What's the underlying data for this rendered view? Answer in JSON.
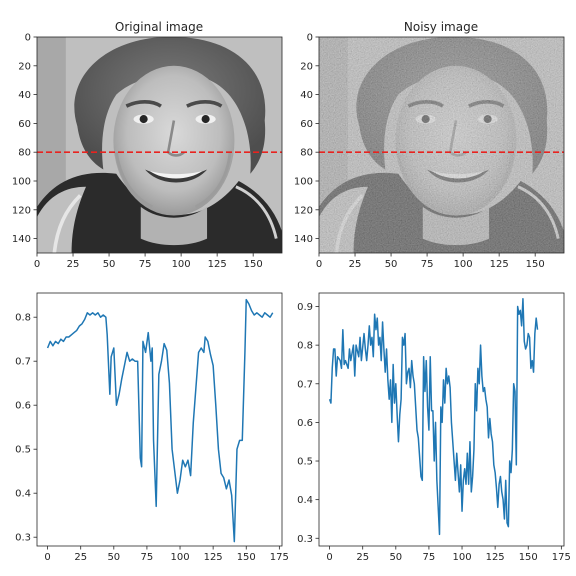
{
  "chart_data": [
    {
      "type": "heatmap",
      "title": "Original image",
      "subject": "grayscale portrait photograph",
      "xlim": [
        0,
        170
      ],
      "ylim": [
        150,
        0
      ],
      "xticks": [
        "0",
        "25",
        "50",
        "75",
        "100",
        "125",
        "150"
      ],
      "yticks": [
        "0",
        "20",
        "40",
        "60",
        "80",
        "100",
        "120",
        "140"
      ],
      "hline": {
        "y": 80,
        "color": "#e8231f",
        "style": "dashed"
      },
      "cmap": "gray"
    },
    {
      "type": "heatmap",
      "title": "Noisy image",
      "subject": "grayscale portrait photograph with added noise",
      "xlim": [
        0,
        170
      ],
      "ylim": [
        150,
        0
      ],
      "xticks": [
        "0",
        "25",
        "50",
        "75",
        "100",
        "125",
        "150"
      ],
      "yticks": [
        "0",
        "20",
        "40",
        "60",
        "80",
        "100",
        "120",
        "140"
      ],
      "hline": {
        "y": 80,
        "color": "#e8231f",
        "style": "dashed"
      },
      "cmap": "gray"
    },
    {
      "type": "line",
      "title": "",
      "xlim": [
        -8,
        177
      ],
      "ylim": [
        0.28,
        0.855
      ],
      "xticks": [
        "0",
        "25",
        "50",
        "75",
        "100",
        "125",
        "150",
        "175"
      ],
      "yticks": [
        "0.3",
        "0.4",
        "0.5",
        "0.6",
        "0.7",
        "0.8"
      ],
      "color": "#1f77b4",
      "points": [
        [
          0,
          0.73
        ],
        [
          2,
          0.745
        ],
        [
          4,
          0.735
        ],
        [
          6,
          0.745
        ],
        [
          8,
          0.74
        ],
        [
          10,
          0.75
        ],
        [
          12,
          0.745
        ],
        [
          14,
          0.755
        ],
        [
          16,
          0.755
        ],
        [
          18,
          0.76
        ],
        [
          20,
          0.765
        ],
        [
          22,
          0.77
        ],
        [
          24,
          0.78
        ],
        [
          26,
          0.785
        ],
        [
          28,
          0.795
        ],
        [
          30,
          0.81
        ],
        [
          32,
          0.805
        ],
        [
          34,
          0.81
        ],
        [
          36,
          0.805
        ],
        [
          38,
          0.81
        ],
        [
          40,
          0.8
        ],
        [
          42,
          0.805
        ],
        [
          44,
          0.8
        ],
        [
          45,
          0.76
        ],
        [
          47,
          0.625
        ],
        [
          48,
          0.71
        ],
        [
          50,
          0.73
        ],
        [
          52,
          0.6
        ],
        [
          54,
          0.625
        ],
        [
          56,
          0.66
        ],
        [
          58,
          0.69
        ],
        [
          60,
          0.72
        ],
        [
          62,
          0.7
        ],
        [
          64,
          0.705
        ],
        [
          66,
          0.7
        ],
        [
          68,
          0.7
        ],
        [
          70,
          0.48
        ],
        [
          71,
          0.46
        ],
        [
          72,
          0.745
        ],
        [
          74,
          0.72
        ],
        [
          76,
          0.765
        ],
        [
          78,
          0.7
        ],
        [
          79,
          0.73
        ],
        [
          80,
          0.52
        ],
        [
          82,
          0.37
        ],
        [
          84,
          0.67
        ],
        [
          86,
          0.7
        ],
        [
          88,
          0.74
        ],
        [
          90,
          0.725
        ],
        [
          92,
          0.65
        ],
        [
          94,
          0.5
        ],
        [
          96,
          0.45
        ],
        [
          98,
          0.4
        ],
        [
          100,
          0.43
        ],
        [
          102,
          0.475
        ],
        [
          104,
          0.46
        ],
        [
          106,
          0.475
        ],
        [
          108,
          0.44
        ],
        [
          110,
          0.56
        ],
        [
          112,
          0.64
        ],
        [
          114,
          0.72
        ],
        [
          116,
          0.73
        ],
        [
          118,
          0.72
        ],
        [
          119,
          0.755
        ],
        [
          121,
          0.745
        ],
        [
          123,
          0.715
        ],
        [
          125,
          0.69
        ],
        [
          127,
          0.6
        ],
        [
          129,
          0.5
        ],
        [
          131,
          0.445
        ],
        [
          133,
          0.435
        ],
        [
          135,
          0.41
        ],
        [
          137,
          0.43
        ],
        [
          139,
          0.395
        ],
        [
          141,
          0.29
        ],
        [
          143,
          0.5
        ],
        [
          145,
          0.52
        ],
        [
          147,
          0.52
        ],
        [
          149,
          0.72
        ],
        [
          150,
          0.84
        ],
        [
          152,
          0.83
        ],
        [
          154,
          0.815
        ],
        [
          156,
          0.805
        ],
        [
          158,
          0.81
        ],
        [
          160,
          0.805
        ],
        [
          162,
          0.8
        ],
        [
          164,
          0.81
        ],
        [
          166,
          0.805
        ],
        [
          168,
          0.8
        ],
        [
          170,
          0.81
        ]
      ]
    },
    {
      "type": "line",
      "title": "",
      "xlim": [
        -8,
        177
      ],
      "ylim": [
        0.28,
        0.935
      ],
      "xticks": [
        "0",
        "25",
        "50",
        "75",
        "100",
        "125",
        "150",
        "175"
      ],
      "yticks": [
        "0.3",
        "0.4",
        "0.5",
        "0.6",
        "0.7",
        "0.8",
        "0.9"
      ],
      "color": "#1f77b4",
      "points": [
        [
          0,
          0.66
        ],
        [
          1,
          0.65
        ],
        [
          2,
          0.74
        ],
        [
          3,
          0.79
        ],
        [
          4,
          0.79
        ],
        [
          5,
          0.72
        ],
        [
          6,
          0.77
        ],
        [
          8,
          0.76
        ],
        [
          9,
          0.74
        ],
        [
          10,
          0.84
        ],
        [
          11,
          0.75
        ],
        [
          12,
          0.76
        ],
        [
          14,
          0.74
        ],
        [
          15,
          0.79
        ],
        [
          16,
          0.76
        ],
        [
          18,
          0.8
        ],
        [
          19,
          0.72
        ],
        [
          20,
          0.8
        ],
        [
          22,
          0.77
        ],
        [
          23,
          0.82
        ],
        [
          24,
          0.76
        ],
        [
          26,
          0.83
        ],
        [
          27,
          0.79
        ],
        [
          28,
          0.76
        ],
        [
          29,
          0.8
        ],
        [
          30,
          0.85
        ],
        [
          31,
          0.8
        ],
        [
          32,
          0.82
        ],
        [
          33,
          0.77
        ],
        [
          34,
          0.88
        ],
        [
          35,
          0.84
        ],
        [
          36,
          0.87
        ],
        [
          37,
          0.8
        ],
        [
          38,
          0.82
        ],
        [
          39,
          0.76
        ],
        [
          40,
          0.86
        ],
        [
          41,
          0.79
        ],
        [
          42,
          0.73
        ],
        [
          43,
          0.79
        ],
        [
          44,
          0.71
        ],
        [
          45,
          0.66
        ],
        [
          46,
          0.71
        ],
        [
          47,
          0.6
        ],
        [
          48,
          0.75
        ],
        [
          49,
          0.65
        ],
        [
          50,
          0.7
        ],
        [
          51,
          0.62
        ],
        [
          52,
          0.55
        ],
        [
          53,
          0.62
        ],
        [
          54,
          0.66
        ],
        [
          55,
          0.82
        ],
        [
          56,
          0.8
        ],
        [
          57,
          0.83
        ],
        [
          58,
          0.7
        ],
        [
          59,
          0.73
        ],
        [
          60,
          0.74
        ],
        [
          61,
          0.69
        ],
        [
          62,
          0.76
        ],
        [
          63,
          0.72
        ],
        [
          64,
          0.7
        ],
        [
          65,
          0.64
        ],
        [
          66,
          0.58
        ],
        [
          67,
          0.56
        ],
        [
          68,
          0.51
        ],
        [
          69,
          0.46
        ],
        [
          70,
          0.45
        ],
        [
          71,
          0.77
        ],
        [
          72,
          0.68
        ],
        [
          73,
          0.76
        ],
        [
          74,
          0.64
        ],
        [
          75,
          0.58
        ],
        [
          76,
          0.77
        ],
        [
          77,
          0.63
        ],
        [
          78,
          0.63
        ],
        [
          79,
          0.5
        ],
        [
          80,
          0.6
        ],
        [
          81,
          0.45
        ],
        [
          82,
          0.38
        ],
        [
          83,
          0.31
        ],
        [
          84,
          0.64
        ],
        [
          85,
          0.6
        ],
        [
          86,
          0.71
        ],
        [
          87,
          0.65
        ],
        [
          88,
          0.74
        ],
        [
          89,
          0.7
        ],
        [
          90,
          0.72
        ],
        [
          91,
          0.69
        ],
        [
          92,
          0.6
        ],
        [
          93,
          0.55
        ],
        [
          94,
          0.5
        ],
        [
          95,
          0.45
        ],
        [
          96,
          0.52
        ],
        [
          97,
          0.47
        ],
        [
          98,
          0.42
        ],
        [
          99,
          0.49
        ],
        [
          100,
          0.37
        ],
        [
          101,
          0.45
        ],
        [
          102,
          0.48
        ],
        [
          103,
          0.44
        ],
        [
          104,
          0.52
        ],
        [
          105,
          0.44
        ],
        [
          106,
          0.55
        ],
        [
          107,
          0.42
        ],
        [
          108,
          0.46
        ],
        [
          109,
          0.53
        ],
        [
          110,
          0.7
        ],
        [
          111,
          0.63
        ],
        [
          112,
          0.74
        ],
        [
          113,
          0.7
        ],
        [
          114,
          0.8
        ],
        [
          115,
          0.72
        ],
        [
          116,
          0.68
        ],
        [
          117,
          0.69
        ],
        [
          118,
          0.66
        ],
        [
          119,
          0.64
        ],
        [
          120,
          0.56
        ],
        [
          121,
          0.61
        ],
        [
          122,
          0.57
        ],
        [
          123,
          0.55
        ],
        [
          124,
          0.49
        ],
        [
          125,
          0.47
        ],
        [
          126,
          0.43
        ],
        [
          127,
          0.38
        ],
        [
          128,
          0.44
        ],
        [
          129,
          0.46
        ],
        [
          130,
          0.42
        ],
        [
          131,
          0.4
        ],
        [
          132,
          0.35
        ],
        [
          133,
          0.45
        ],
        [
          134,
          0.34
        ],
        [
          135,
          0.33
        ],
        [
          136,
          0.5
        ],
        [
          137,
          0.47
        ],
        [
          138,
          0.53
        ],
        [
          139,
          0.7
        ],
        [
          140,
          0.68
        ],
        [
          141,
          0.49
        ],
        [
          142,
          0.9
        ],
        [
          143,
          0.88
        ],
        [
          144,
          0.89
        ],
        [
          145,
          0.85
        ],
        [
          146,
          0.92
        ],
        [
          147,
          0.81
        ],
        [
          148,
          0.79
        ],
        [
          149,
          0.8
        ],
        [
          150,
          0.83
        ],
        [
          151,
          0.82
        ],
        [
          152,
          0.74
        ],
        [
          153,
          0.76
        ],
        [
          154,
          0.73
        ],
        [
          155,
          0.83
        ],
        [
          156,
          0.87
        ],
        [
          157,
          0.84
        ]
      ]
    }
  ]
}
